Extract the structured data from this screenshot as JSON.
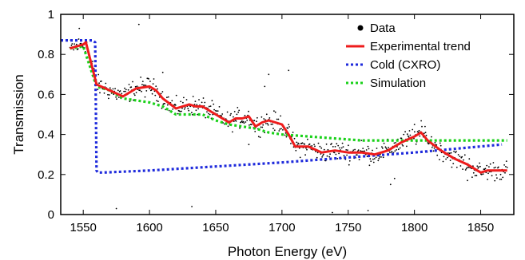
{
  "chart_data": {
    "type": "line",
    "xlabel": "Photon Energy (eV)",
    "ylabel": "Transmission",
    "xlim": [
      1533,
      1875
    ],
    "ylim": [
      0,
      1
    ],
    "xticks": [
      1550,
      1600,
      1650,
      1700,
      1750,
      1800,
      1850
    ],
    "yticks": [
      0,
      0.2,
      0.4,
      0.6,
      0.8,
      1
    ],
    "ytick_labels": [
      "0",
      "0.2",
      "0.4",
      "0.6",
      "0.8",
      "1"
    ],
    "grid": false,
    "legend_position": "top-right",
    "series": [
      {
        "name": "Data",
        "kind": "scatter",
        "color": "#000000",
        "noise": 0.03,
        "outliers": [
          [
            1547,
            0.93
          ],
          [
            1592,
            0.95
          ],
          [
            1610,
            0.71
          ],
          [
            1632,
            0.04
          ],
          [
            1687,
            0.64
          ],
          [
            1690,
            0.7
          ],
          [
            1705,
            0.72
          ],
          [
            1722,
            0.27
          ],
          [
            1738,
            0.01
          ],
          [
            1765,
            0.02
          ],
          [
            1782,
            0.15
          ],
          [
            1785,
            0.18
          ],
          [
            1800,
            0.45
          ],
          [
            1808,
            0.44
          ],
          [
            1840,
            0.17
          ],
          [
            1575,
            0.03
          ],
          [
            1675,
            0.35
          ],
          [
            1760,
            0.37
          ]
        ]
      },
      {
        "name": "Experimental trend",
        "kind": "line",
        "color": "#ee1c1c",
        "dash": "solid",
        "x": [
          1540,
          1545,
          1550,
          1552,
          1560,
          1570,
          1580,
          1590,
          1600,
          1605,
          1610,
          1620,
          1630,
          1635,
          1640,
          1645,
          1650,
          1655,
          1660,
          1665,
          1670,
          1675,
          1680,
          1685,
          1690,
          1695,
          1700,
          1705,
          1710,
          1715,
          1720,
          1730,
          1740,
          1750,
          1760,
          1770,
          1780,
          1790,
          1800,
          1805,
          1810,
          1820,
          1830,
          1840,
          1850,
          1855,
          1860,
          1870
        ],
        "y": [
          0.83,
          0.84,
          0.85,
          0.86,
          0.65,
          0.62,
          0.59,
          0.63,
          0.64,
          0.62,
          0.58,
          0.53,
          0.55,
          0.54,
          0.54,
          0.52,
          0.5,
          0.48,
          0.46,
          0.48,
          0.48,
          0.49,
          0.44,
          0.46,
          0.47,
          0.46,
          0.45,
          0.4,
          0.34,
          0.34,
          0.34,
          0.31,
          0.32,
          0.31,
          0.31,
          0.3,
          0.32,
          0.36,
          0.39,
          0.41,
          0.37,
          0.32,
          0.28,
          0.25,
          0.21,
          0.22,
          0.22,
          0.22
        ]
      },
      {
        "name": "Cold (CXRO)",
        "kind": "line",
        "color": "#1f2bdc",
        "dash": "dotted",
        "x": [
          1533,
          1554,
          1557,
          1559,
          1560,
          1561,
          1565,
          1600,
          1700,
          1800,
          1866
        ],
        "y": [
          0.87,
          0.87,
          0.87,
          0.86,
          0.22,
          0.21,
          0.21,
          0.22,
          0.26,
          0.31,
          0.35
        ]
      },
      {
        "name": "Simulation",
        "kind": "line",
        "color": "#19d119",
        "dash": "dotted",
        "x": [
          1540,
          1550,
          1555,
          1560,
          1570,
          1580,
          1590,
          1600,
          1610,
          1620,
          1630,
          1640,
          1650,
          1660,
          1670,
          1680,
          1690,
          1700,
          1720,
          1740,
          1760,
          1780,
          1800,
          1820,
          1840,
          1860,
          1870
        ],
        "y": [
          0.83,
          0.84,
          0.74,
          0.64,
          0.62,
          0.58,
          0.57,
          0.56,
          0.54,
          0.5,
          0.5,
          0.5,
          0.47,
          0.45,
          0.44,
          0.43,
          0.41,
          0.4,
          0.39,
          0.38,
          0.37,
          0.37,
          0.37,
          0.37,
          0.37,
          0.37,
          0.37
        ]
      }
    ]
  }
}
